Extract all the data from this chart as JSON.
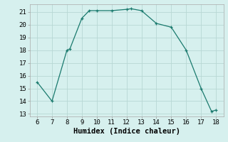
{
  "x": [
    6,
    7,
    8,
    8.2,
    9,
    9.5,
    10,
    11,
    12,
    12.3,
    13,
    14,
    15,
    16,
    17,
    17.7,
    18
  ],
  "y": [
    15.5,
    14.0,
    18.0,
    18.1,
    20.5,
    21.1,
    21.1,
    21.1,
    21.2,
    21.25,
    21.1,
    20.1,
    19.8,
    18.0,
    15.0,
    13.2,
    13.3
  ],
  "xlabel": "Humidex (Indice chaleur)",
  "xlim": [
    5.5,
    18.5
  ],
  "ylim": [
    12.8,
    21.6
  ],
  "yticks": [
    13,
    14,
    15,
    16,
    17,
    18,
    19,
    20,
    21
  ],
  "xticks": [
    6,
    7,
    8,
    9,
    10,
    11,
    12,
    13,
    14,
    15,
    16,
    17,
    18
  ],
  "line_color": "#1a7a6e",
  "marker_color": "#1a7a6e",
  "bg_color": "#d6f0ee",
  "grid_color": "#b8d8d4",
  "tick_label_fontsize": 6.5,
  "xlabel_fontsize": 7.5
}
